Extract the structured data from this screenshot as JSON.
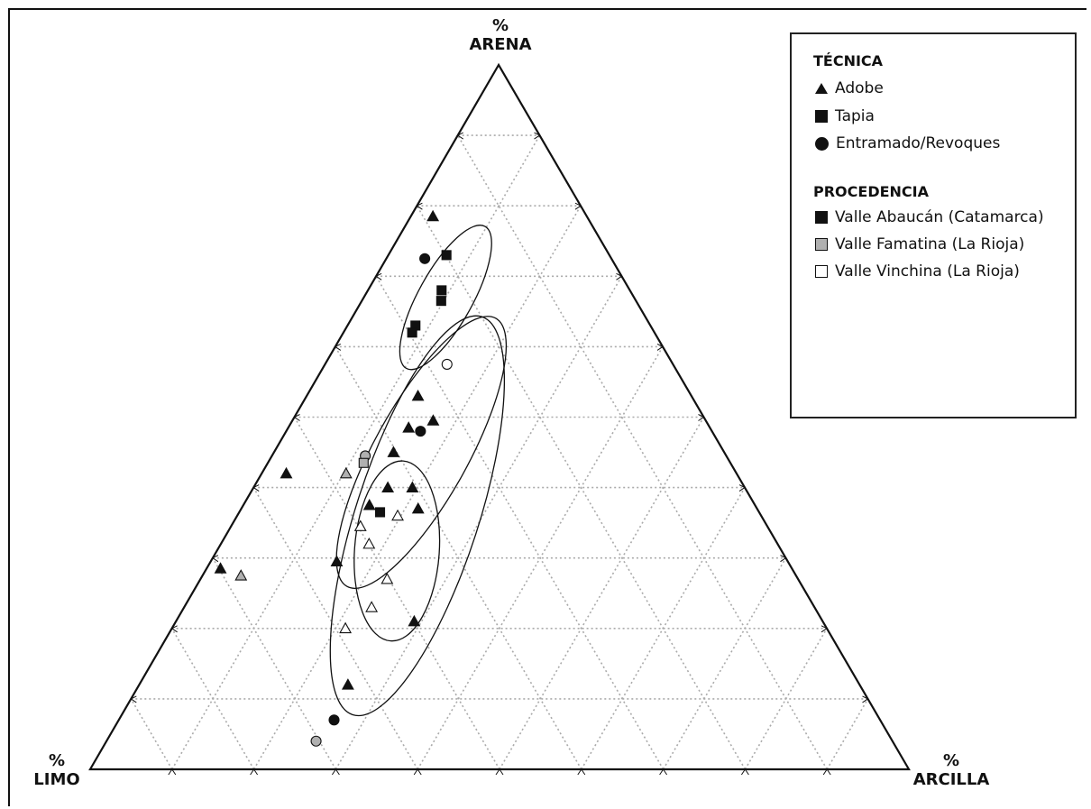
{
  "chart_data": {
    "type": "scatter",
    "subtype": "ternary",
    "axes": {
      "top": {
        "symbol": "%",
        "label": "ARENA"
      },
      "left": {
        "symbol": "%",
        "label": "LIMO"
      },
      "right": {
        "symbol": "%",
        "label": "ARCILLA"
      }
    },
    "grid": {
      "divisions": 10,
      "style": "dotted"
    },
    "legend": {
      "technique_title": "TÉCNICA",
      "techniques": [
        {
          "shape": "triangle",
          "label": "Adobe"
        },
        {
          "shape": "square",
          "label": "Tapia"
        },
        {
          "shape": "circle",
          "label": "Entramado/Revoques"
        }
      ],
      "provenance_title": "PROCEDENCIA",
      "provenances": [
        {
          "fill": "#111111",
          "label": "Valle Abaucán (Catamarca)"
        },
        {
          "fill": "#b0b0b0",
          "label": "Valle Famatina (La Rioja)"
        },
        {
          "fill": "#ffffff",
          "label": "Valle Vinchina (La Rioja)"
        }
      ],
      "placement": "top-right"
    },
    "points": [
      {
        "arena": 78.5,
        "limo": 18.8,
        "arcilla": 2.7,
        "technique": "adobe",
        "provenance": "abaucan"
      },
      {
        "arena": 72.5,
        "limo": 22.8,
        "arcilla": 4.7,
        "technique": "entramado",
        "provenance": "abaucan"
      },
      {
        "arena": 73.0,
        "limo": 19.9,
        "arcilla": 7.1,
        "technique": "tapia",
        "provenance": "abaucan"
      },
      {
        "arena": 68.0,
        "limo": 23.0,
        "arcilla": 9.0,
        "technique": "tapia",
        "provenance": "abaucan"
      },
      {
        "arena": 66.5,
        "limo": 23.8,
        "arcilla": 9.7,
        "technique": "tapia",
        "provenance": "abaucan"
      },
      {
        "arena": 63.0,
        "limo": 28.7,
        "arcilla": 8.3,
        "technique": "tapia",
        "provenance": "abaucan"
      },
      {
        "arena": 62.0,
        "limo": 29.6,
        "arcilla": 8.4,
        "technique": "tapia",
        "provenance": "abaucan"
      },
      {
        "arena": 57.5,
        "limo": 27.6,
        "arcilla": 14.9,
        "technique": "entramado",
        "provenance": "vinchina"
      },
      {
        "arena": 53.0,
        "limo": 33.4,
        "arcilla": 13.6,
        "technique": "adobe",
        "provenance": "abaucan"
      },
      {
        "arena": 49.5,
        "limo": 33.3,
        "arcilla": 17.2,
        "technique": "adobe",
        "provenance": "abaucan"
      },
      {
        "arena": 48.5,
        "limo": 36.8,
        "arcilla": 14.7,
        "technique": "adobe",
        "provenance": "abaucan"
      },
      {
        "arena": 48.0,
        "limo": 35.6,
        "arcilla": 16.4,
        "technique": "entramado",
        "provenance": "abaucan"
      },
      {
        "arena": 45.0,
        "limo": 40.4,
        "arcilla": 14.6,
        "technique": "adobe",
        "provenance": "abaucan"
      },
      {
        "arena": 44.5,
        "limo": 44.1,
        "arcilla": 11.4,
        "technique": "entramado",
        "provenance": "famatina"
      },
      {
        "arena": 43.5,
        "limo": 44.8,
        "arcilla": 11.7,
        "technique": "tapia",
        "provenance": "famatina"
      },
      {
        "arena": 42.0,
        "limo": 55.0,
        "arcilla": 3.0,
        "technique": "adobe",
        "provenance": "abaucan"
      },
      {
        "arena": 42.0,
        "limo": 47.7,
        "arcilla": 10.3,
        "technique": "adobe",
        "provenance": "famatina"
      },
      {
        "arena": 40.0,
        "limo": 43.6,
        "arcilla": 16.4,
        "technique": "adobe",
        "provenance": "abaucan"
      },
      {
        "arena": 40.0,
        "limo": 40.6,
        "arcilla": 19.4,
        "technique": "adobe",
        "provenance": "abaucan"
      },
      {
        "arena": 37.5,
        "limo": 47.1,
        "arcilla": 15.4,
        "technique": "adobe",
        "provenance": "abaucan"
      },
      {
        "arena": 37.0,
        "limo": 41.4,
        "arcilla": 21.6,
        "technique": "adobe",
        "provenance": "abaucan"
      },
      {
        "arena": 36.5,
        "limo": 46.3,
        "arcilla": 17.2,
        "technique": "tapia",
        "provenance": "abaucan"
      },
      {
        "arena": 36.0,
        "limo": 44.4,
        "arcilla": 19.6,
        "technique": "adobe",
        "provenance": "vinchina"
      },
      {
        "arena": 34.5,
        "limo": 49.7,
        "arcilla": 15.8,
        "technique": "adobe",
        "provenance": "vinchina"
      },
      {
        "arena": 32.0,
        "limo": 49.9,
        "arcilla": 18.1,
        "technique": "adobe",
        "provenance": "vinchina"
      },
      {
        "arena": 29.5,
        "limo": 55.1,
        "arcilla": 15.4,
        "technique": "adobe",
        "provenance": "abaucan"
      },
      {
        "arena": 27.0,
        "limo": 50.2,
        "arcilla": 22.8,
        "technique": "adobe",
        "provenance": "vinchina"
      },
      {
        "arena": 28.5,
        "limo": 69.8,
        "arcilla": 1.7,
        "technique": "adobe",
        "provenance": "abaucan"
      },
      {
        "arena": 27.5,
        "limo": 67.8,
        "arcilla": 4.7,
        "technique": "adobe",
        "provenance": "famatina"
      },
      {
        "arena": 23.0,
        "limo": 54.1,
        "arcilla": 22.9,
        "technique": "adobe",
        "provenance": "vinchina"
      },
      {
        "arena": 20.0,
        "limo": 58.8,
        "arcilla": 21.2,
        "technique": "adobe",
        "provenance": "vinchina"
      },
      {
        "arena": 21.0,
        "limo": 49.9,
        "arcilla": 29.1,
        "technique": "adobe",
        "provenance": "abaucan"
      },
      {
        "arena": 12.0,
        "limo": 62.5,
        "arcilla": 25.5,
        "technique": "adobe",
        "provenance": "abaucan"
      },
      {
        "arena": 7.0,
        "limo": 66.7,
        "arcilla": 26.3,
        "technique": "entramado",
        "provenance": "abaucan"
      },
      {
        "arena": 4.0,
        "limo": 70.4,
        "arcilla": 25.6,
        "technique": "entramado",
        "provenance": "famatina"
      }
    ],
    "groupings": [
      {
        "center_arena": 67.0,
        "center_limo": 23.0,
        "shape": "ellipse"
      },
      {
        "center_arena": 45.0,
        "center_limo": 37.0,
        "shape": "ellipse"
      },
      {
        "center_arena": 36.0,
        "center_limo": 42.0,
        "shape": "ellipse"
      },
      {
        "center_arena": 31.0,
        "center_limo": 47.0,
        "shape": "ellipse"
      }
    ]
  }
}
